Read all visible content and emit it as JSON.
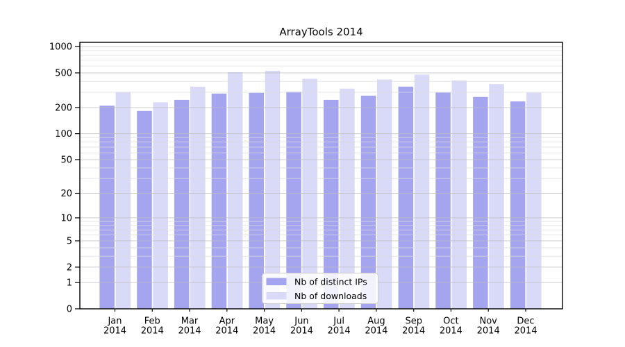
{
  "figure": {
    "title": "ArrayTools 2014"
  },
  "chart_data": {
    "type": "bar",
    "title": "ArrayTools 2014",
    "categories": [
      "Jan 2014",
      "Feb 2014",
      "Mar 2014",
      "Apr 2014",
      "May 2014",
      "Jun 2014",
      "Jul 2014",
      "Aug 2014",
      "Sep 2014",
      "Oct 2014",
      "Nov 2014",
      "Dec 2014"
    ],
    "series": [
      {
        "name": "Nb of distinct IPs",
        "color": "#a5a5ef",
        "values": [
          210,
          183,
          245,
          290,
          295,
          304,
          245,
          274,
          348,
          298,
          265,
          235
        ]
      },
      {
        "name": "Nb of downloads",
        "color": "#d9d9f8",
        "values": [
          303,
          230,
          348,
          510,
          530,
          428,
          330,
          420,
          478,
          410,
          372,
          297
        ]
      }
    ],
    "yscale": "log1p",
    "ylim": [
      0,
      1120
    ],
    "yticks": [
      0,
      1,
      2,
      5,
      10,
      20,
      50,
      100,
      200,
      500,
      1000
    ],
    "ytick_labels": [
      "0",
      "1",
      "2",
      "5",
      "10",
      "20",
      "50",
      "100",
      "200",
      "500",
      "1000"
    ],
    "grid": true,
    "legend": {
      "position": "inside-bottom-center",
      "labels": [
        "Nb of distinct IPs",
        "Nb of downloads"
      ]
    },
    "colors": {
      "axis": "#000000",
      "grid_major": "#bdbdbd",
      "grid_minor": "#dcdcdc",
      "background": "#ffffff",
      "legend_border": "#cccccc",
      "legend_background": "#ffffff"
    }
  }
}
